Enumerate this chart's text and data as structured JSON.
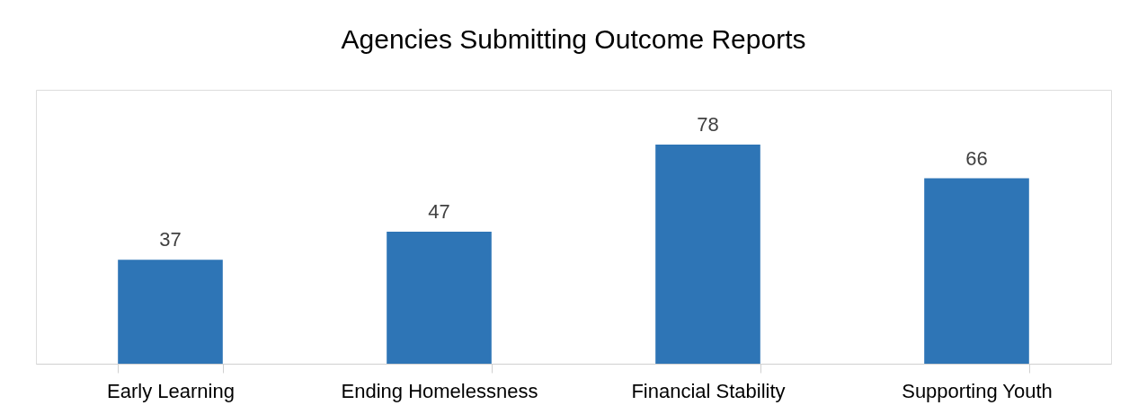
{
  "chart_data": {
    "type": "bar",
    "title": "Agencies Submitting Outcome Reports",
    "categories": [
      "Early Learning",
      "Ending Homelessness",
      "Financial Stability",
      "Supporting Youth"
    ],
    "values": [
      37,
      47,
      78,
      66
    ],
    "color": "#2e75b6",
    "data_labels": true,
    "tick_labels": "x"
  }
}
